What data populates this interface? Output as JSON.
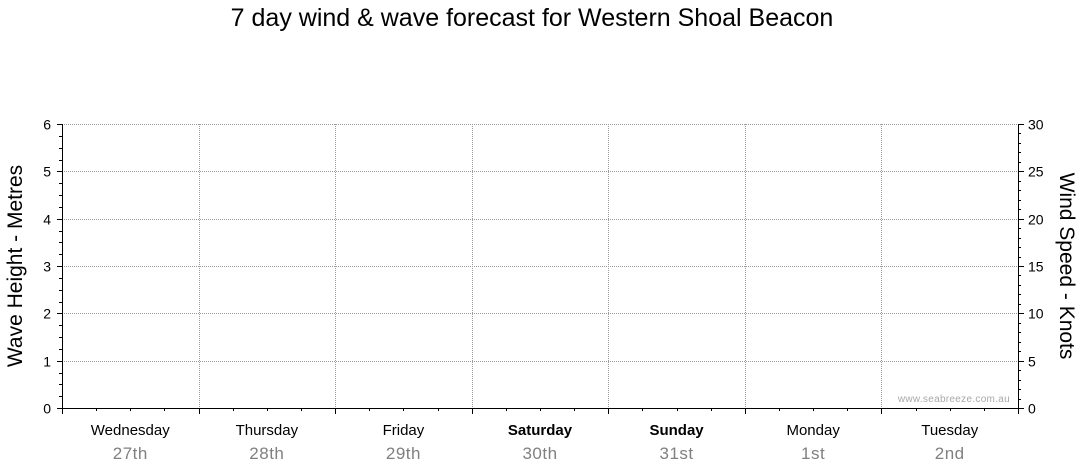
{
  "chart_data": {
    "type": "line",
    "title": "7 day wind & wave forecast for Western Shoal Beacon",
    "ylabel_left": "Wave Height - Metres",
    "ylabel_right": "Wind Speed - Knots",
    "ylim_left": [
      0,
      6
    ],
    "ylim_right": [
      0,
      30
    ],
    "yticks_left": [
      "0",
      "1",
      "2",
      "3",
      "4",
      "5",
      "6"
    ],
    "yticks_right": [
      "0",
      "5",
      "10",
      "15",
      "20",
      "25",
      "30"
    ],
    "grid": true,
    "days": [
      {
        "name": "Wednesday",
        "date": "27th",
        "weekend": false
      },
      {
        "name": "Thursday",
        "date": "28th",
        "weekend": false
      },
      {
        "name": "Friday",
        "date": "29th",
        "weekend": false
      },
      {
        "name": "Saturday",
        "date": "30th",
        "weekend": true
      },
      {
        "name": "Sunday",
        "date": "31st",
        "weekend": true
      },
      {
        "name": "Monday",
        "date": "1st",
        "weekend": false
      },
      {
        "name": "Tuesday",
        "date": "2nd",
        "weekend": false
      }
    ],
    "series": [],
    "watermark": "www.seabreeze.com.au"
  }
}
